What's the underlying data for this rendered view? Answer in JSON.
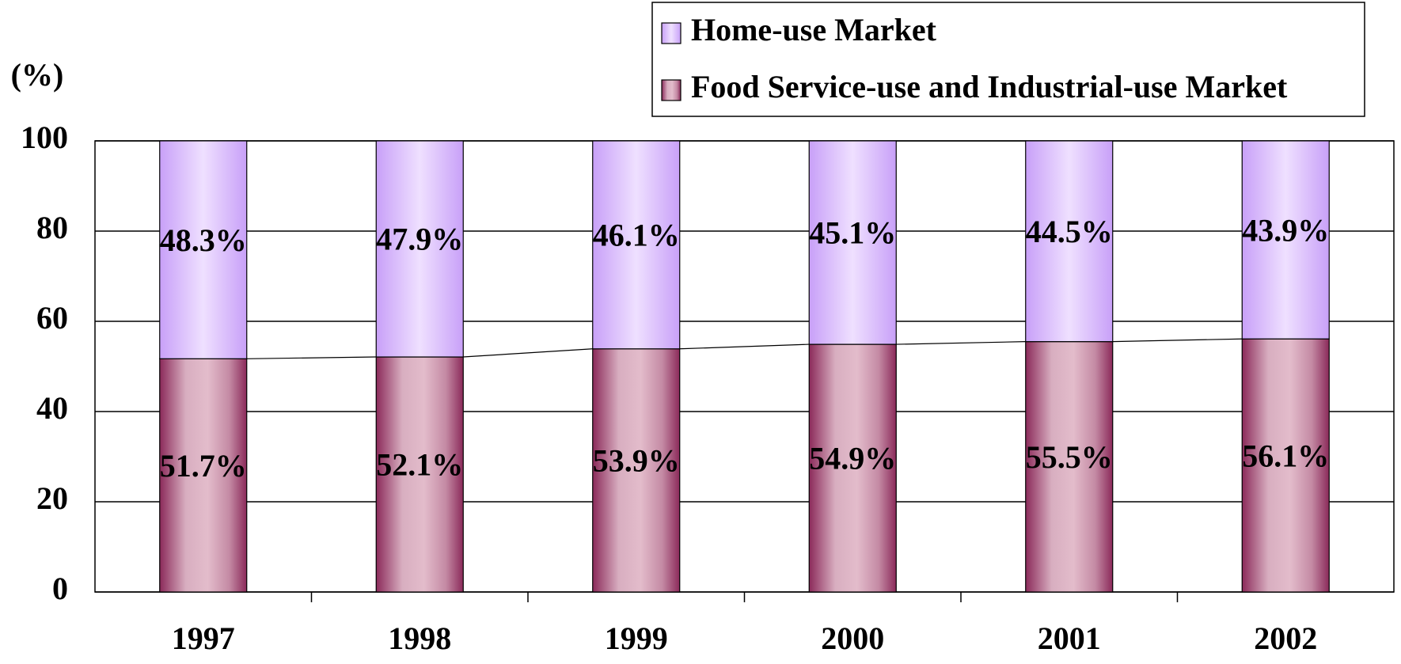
{
  "chart_data": {
    "type": "stacked_bar",
    "y_label": "(%)",
    "categories": [
      "1997",
      "1998",
      "1999",
      "2000",
      "2001",
      "2002"
    ],
    "series": [
      {
        "name": "Food Service-use and Industrial-use Market",
        "color": "#8b2a5a",
        "values": [
          51.7,
          52.1,
          53.9,
          54.9,
          55.5,
          56.1
        ],
        "value_labels": [
          "51.7%",
          "52.1%",
          "53.9%",
          "54.9%",
          "55.5%",
          "56.1%"
        ]
      },
      {
        "name": "Home-use Market",
        "color": "#c8a0f8",
        "values": [
          48.3,
          47.9,
          46.1,
          45.1,
          44.5,
          43.9
        ],
        "value_labels": [
          "48.3%",
          "47.9%",
          "46.1%",
          "45.1%",
          "44.5%",
          "43.9%"
        ]
      }
    ],
    "ylim": [
      0,
      100
    ],
    "yticks": [
      0,
      20,
      40,
      60,
      80,
      100
    ],
    "grid": true,
    "legend": "top-right",
    "series_lines": true
  }
}
